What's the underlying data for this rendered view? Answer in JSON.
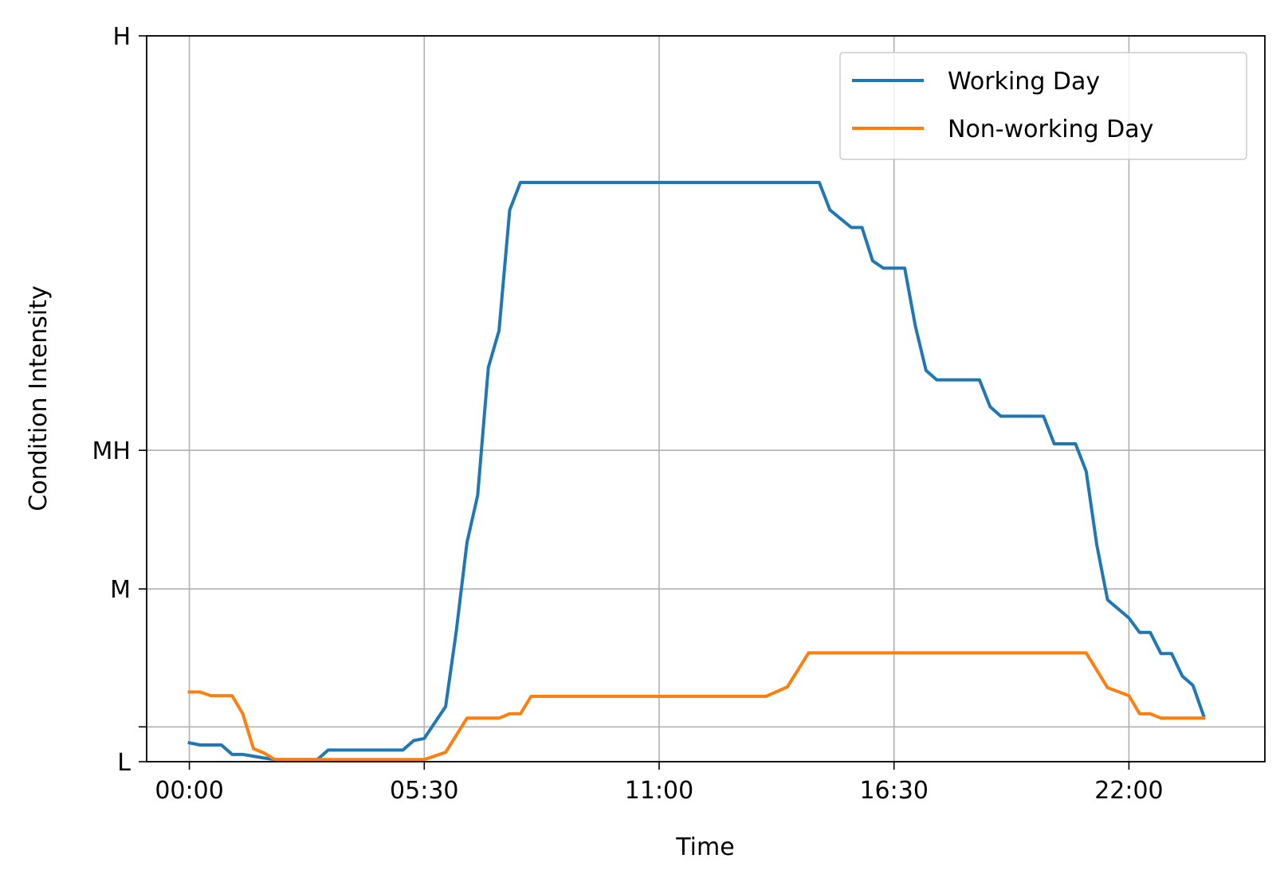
{
  "chart_data": {
    "type": "line",
    "xlabel": "Time",
    "ylabel": "Condition Intensity",
    "x_range": [
      "23:00",
      "27:00"
    ],
    "x_ticks": [
      "00:00",
      "05:30",
      "11:00",
      "16:30",
      "22:00"
    ],
    "y_range": [
      0,
      1
    ],
    "y_ticks": [
      {
        "value": 0.0,
        "label": "L"
      },
      {
        "value": 0.048,
        "label": ""
      },
      {
        "value": 0.238,
        "label": "M"
      },
      {
        "value": 0.429,
        "label": "MH"
      },
      {
        "value": 1.0,
        "label": "H"
      }
    ],
    "grid": true,
    "legend_position": "top-right",
    "series": [
      {
        "name": "Working Day",
        "color": "#1f77b4",
        "points": [
          [
            "00:00",
            0.026
          ],
          [
            "00:15",
            0.023
          ],
          [
            "00:45",
            0.023
          ],
          [
            "01:00",
            0.01
          ],
          [
            "01:15",
            0.01
          ],
          [
            "01:45",
            0.005
          ],
          [
            "02:00",
            0.003
          ],
          [
            "03:00",
            0.003
          ],
          [
            "03:15",
            0.016
          ],
          [
            "05:00",
            0.016
          ],
          [
            "05:15",
            0.029
          ],
          [
            "05:30",
            0.032
          ],
          [
            "06:00",
            0.076
          ],
          [
            "06:15",
            0.18
          ],
          [
            "06:30",
            0.302
          ],
          [
            "06:45",
            0.367
          ],
          [
            "07:00",
            0.543
          ],
          [
            "07:15",
            0.594
          ],
          [
            "07:30",
            0.76
          ],
          [
            "07:45",
            0.798
          ],
          [
            "14:45",
            0.798
          ],
          [
            "15:00",
            0.76
          ],
          [
            "15:30",
            0.736
          ],
          [
            "15:45",
            0.736
          ],
          [
            "16:00",
            0.69
          ],
          [
            "16:15",
            0.68
          ],
          [
            "16:45",
            0.68
          ],
          [
            "17:00",
            0.6
          ],
          [
            "17:15",
            0.539
          ],
          [
            "17:30",
            0.526
          ],
          [
            "18:30",
            0.526
          ],
          [
            "18:45",
            0.489
          ],
          [
            "19:00",
            0.476
          ],
          [
            "20:00",
            0.476
          ],
          [
            "20:15",
            0.438
          ],
          [
            "20:45",
            0.438
          ],
          [
            "21:00",
            0.4
          ],
          [
            "21:15",
            0.298
          ],
          [
            "21:30",
            0.223
          ],
          [
            "22:00",
            0.198
          ],
          [
            "22:15",
            0.178
          ],
          [
            "22:30",
            0.178
          ],
          [
            "22:45",
            0.149
          ],
          [
            "23:00",
            0.149
          ],
          [
            "23:15",
            0.118
          ],
          [
            "23:30",
            0.105
          ],
          [
            "23:45",
            0.063
          ]
        ]
      },
      {
        "name": "Non-working Day",
        "color": "#ff7f0e",
        "points": [
          [
            "00:00",
            0.096
          ],
          [
            "00:15",
            0.096
          ],
          [
            "00:30",
            0.091
          ],
          [
            "01:00",
            0.091
          ],
          [
            "01:15",
            0.066
          ],
          [
            "01:30",
            0.018
          ],
          [
            "01:45",
            0.012
          ],
          [
            "02:00",
            0.003
          ],
          [
            "05:30",
            0.003
          ],
          [
            "06:00",
            0.013
          ],
          [
            "06:30",
            0.06
          ],
          [
            "07:15",
            0.06
          ],
          [
            "07:30",
            0.066
          ],
          [
            "07:45",
            0.066
          ],
          [
            "08:00",
            0.09
          ],
          [
            "13:30",
            0.09
          ],
          [
            "14:00",
            0.103
          ],
          [
            "14:30",
            0.15
          ],
          [
            "21:00",
            0.15
          ],
          [
            "21:30",
            0.102
          ],
          [
            "22:00",
            0.091
          ],
          [
            "22:15",
            0.066
          ],
          [
            "22:30",
            0.066
          ],
          [
            "22:45",
            0.06
          ],
          [
            "23:45",
            0.06
          ]
        ]
      }
    ]
  }
}
